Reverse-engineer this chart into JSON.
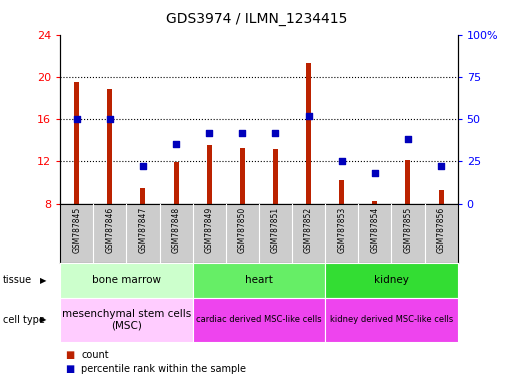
{
  "title": "GDS3974 / ILMN_1234415",
  "samples": [
    "GSM787845",
    "GSM787846",
    "GSM787847",
    "GSM787848",
    "GSM787849",
    "GSM787850",
    "GSM787851",
    "GSM787852",
    "GSM787853",
    "GSM787854",
    "GSM787855",
    "GSM787856"
  ],
  "counts": [
    19.5,
    18.8,
    9.5,
    11.9,
    13.5,
    13.3,
    13.2,
    21.3,
    10.2,
    8.2,
    12.1,
    9.3
  ],
  "percentile_ranks": [
    50,
    50,
    22,
    35,
    42,
    42,
    42,
    52,
    25,
    18,
    38,
    22
  ],
  "ylim_left": [
    8,
    24
  ],
  "ylim_right": [
    0,
    100
  ],
  "yticks_left": [
    8,
    12,
    16,
    20,
    24
  ],
  "yticks_right": [
    0,
    25,
    50,
    75,
    100
  ],
  "bar_color": "#bb2200",
  "dot_color": "#0000bb",
  "tissue_groups": [
    {
      "label": "bone marrow",
      "start": 0,
      "end": 4,
      "color": "#ccffcc"
    },
    {
      "label": "heart",
      "start": 4,
      "end": 8,
      "color": "#66ee66"
    },
    {
      "label": "kidney",
      "start": 8,
      "end": 12,
      "color": "#33dd33"
    }
  ],
  "cell_type_groups": [
    {
      "label": "mesenchymal stem cells\n(MSC)",
      "start": 0,
      "end": 4,
      "color": "#ffccff"
    },
    {
      "label": "cardiac derived MSC-like cells",
      "start": 4,
      "end": 8,
      "color": "#ee44ee"
    },
    {
      "label": "kidney derived MSC-like cells",
      "start": 8,
      "end": 12,
      "color": "#ee44ee"
    }
  ],
  "tissue_row_label": "tissue",
  "cell_type_row_label": "cell type",
  "legend_count_label": "count",
  "legend_pct_label": "percentile rank within the sample",
  "background_color": "#ffffff",
  "plot_bg_color": "#ffffff",
  "xtick_bg_color": "#cccccc"
}
